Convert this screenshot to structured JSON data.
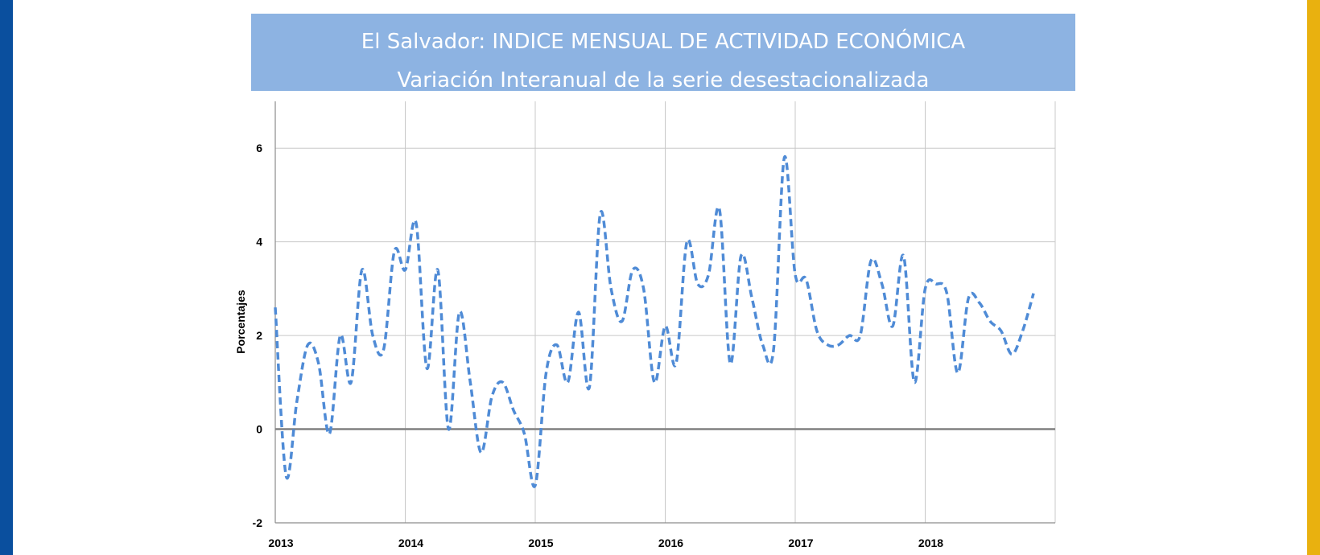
{
  "colors": {
    "left_bar": "#0a4f9e",
    "right_bar": "#e9b10f",
    "title_bg": "#8db3e2",
    "series": "#4f8bd6",
    "grid": "#c8c8c8",
    "zero_line": "#808080"
  },
  "chart_data": {
    "type": "line",
    "title": "El Salvador: INDICE MENSUAL DE ACTIVIDAD ECONÓMICA",
    "subtitle": "Variación Interanual de la serie desestacionalizada",
    "xlabel": "",
    "ylabel": "Porcentajes",
    "ylim": [
      -2,
      7
    ],
    "yticks": [
      -2,
      0,
      2,
      4,
      6
    ],
    "xlim": [
      2013,
      2019
    ],
    "xticks": [
      2013,
      2014,
      2015,
      2016,
      2017,
      2018
    ],
    "xtick_labels": [
      "2013",
      "2014",
      "2015",
      "2016",
      "2017",
      "2018"
    ],
    "ytick_labels": [
      "-2",
      "0",
      "2",
      "4",
      "6"
    ],
    "grid": true,
    "line_style": "dashed",
    "series": [
      {
        "x_start": "2013-01",
        "frequency": "monthly",
        "values": [
          2.6,
          -1.0,
          0.6,
          1.8,
          1.4,
          -0.1,
          2.0,
          1.0,
          3.4,
          2.0,
          1.7,
          3.8,
          3.4,
          4.4,
          1.3,
          3.4,
          0.0,
          2.5,
          1.0,
          -0.5,
          0.7,
          1.0,
          0.4,
          -0.1,
          -1.2,
          1.2,
          1.8,
          1.0,
          2.5,
          0.9,
          4.6,
          3.0,
          2.3,
          3.4,
          3.0,
          1.0,
          2.2,
          1.4,
          4.0,
          3.1,
          3.3,
          4.7,
          1.4,
          3.7,
          2.8,
          1.8,
          1.7,
          5.8,
          3.3,
          3.2,
          2.1,
          1.8,
          1.8,
          2.0,
          2.0,
          3.6,
          3.1,
          2.2,
          3.7,
          1.0,
          3.0,
          3.1,
          2.9,
          1.2,
          2.8,
          2.7,
          2.3,
          2.1,
          1.6,
          2.1,
          2.9
        ]
      }
    ]
  }
}
